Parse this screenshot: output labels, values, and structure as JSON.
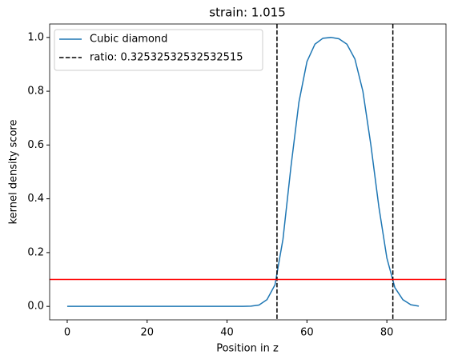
{
  "chart_data": {
    "type": "line",
    "title": "strain: 1.015",
    "x_label": "Position in z",
    "y_label": "kernel density score",
    "series": [
      {
        "name": "Cubic diamond",
        "color": "#1f77b4",
        "x": [
          0,
          2,
          4,
          6,
          8,
          10,
          12,
          14,
          16,
          18,
          20,
          22,
          24,
          26,
          28,
          30,
          32,
          34,
          36,
          38,
          40,
          42,
          44,
          46,
          48,
          50,
          52,
          54,
          56,
          58,
          60,
          62,
          64,
          66,
          68,
          70,
          72,
          74,
          76,
          78,
          80,
          82,
          84,
          86,
          88
        ],
        "values": [
          0,
          0,
          0,
          0,
          0,
          0,
          0,
          0,
          0,
          0,
          0,
          0,
          0,
          0,
          0,
          0,
          0,
          0,
          0,
          0,
          0,
          0,
          0,
          0.001,
          0.005,
          0.025,
          0.08,
          0.25,
          0.52,
          0.76,
          0.91,
          0.975,
          0.997,
          1.0,
          0.995,
          0.975,
          0.92,
          0.8,
          0.6,
          0.37,
          0.18,
          0.07,
          0.025,
          0.006,
          0.001
        ]
      }
    ],
    "vlines": {
      "name": "ratio: 0.32532532532532515",
      "color": "#000000",
      "values": [
        52.5,
        81.5
      ]
    },
    "hline": {
      "value": 0.1,
      "color": "#ff0000"
    },
    "xlim": [
      -4.4,
      94.8
    ],
    "ylim": [
      -0.05,
      1.05
    ],
    "xticks": [
      0,
      20,
      40,
      60,
      80
    ],
    "yticks": [
      {
        "value": 0,
        "label": "0.0"
      },
      {
        "value": 0.2,
        "label": "0.2"
      },
      {
        "value": 0.4,
        "label": "0.4"
      },
      {
        "value": 0.6,
        "label": "0.6"
      },
      {
        "value": 0.8,
        "label": "0.8"
      },
      {
        "value": 1.0,
        "label": "1.0"
      }
    ],
    "legend": "upper left"
  }
}
